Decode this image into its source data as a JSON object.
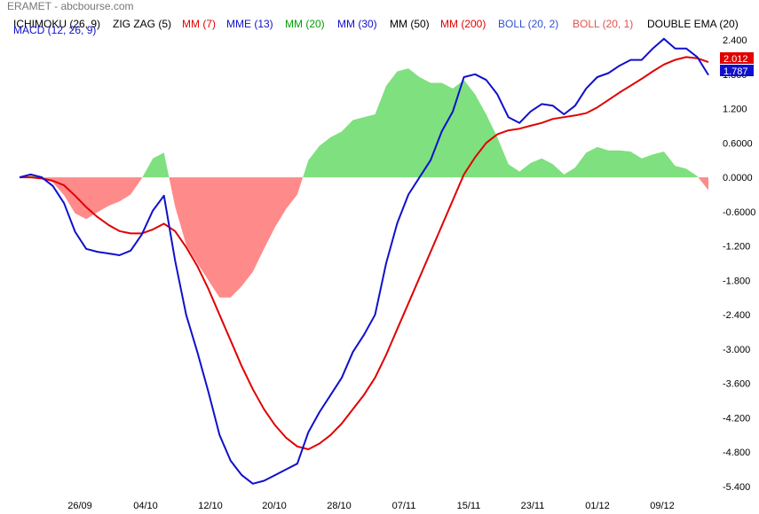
{
  "title": "ERAMET - abcbourse.com",
  "indicators": [
    {
      "label": "ICHIMOKU (26, 9)",
      "color": "#000000"
    },
    {
      "label": "ZIG ZAG (5)",
      "color": "#000000"
    },
    {
      "label": "MM (7)",
      "color": "#e00000"
    },
    {
      "label": "MME (13)",
      "color": "#1010cc"
    },
    {
      "label": "MM (20)",
      "color": "#00a000"
    },
    {
      "label": "MM (30)",
      "color": "#1010cc"
    },
    {
      "label": "MM (50)",
      "color": "#000000"
    },
    {
      "label": "MM (200)",
      "color": "#e00000"
    },
    {
      "label": "BOLL (20, 2)",
      "color": "#3050d0"
    },
    {
      "label": "BOLL (20, 1)",
      "color": "#e05050"
    },
    {
      "label": "DOUBLE EMA (20)",
      "color": "#000000"
    }
  ],
  "macd_label": "MACD (12, 26, 9)",
  "last_values": {
    "signal": "2.012",
    "macd": "1.787"
  },
  "colors": {
    "macd": "#1010cc",
    "signal": "#e00000",
    "hist_pos": "#7ee07e",
    "hist_neg": "#ff8a8a"
  },
  "chart_data": {
    "type": "line",
    "title": "MACD (12, 26, 9)",
    "x_ticks": [
      "26/09",
      "04/10",
      "12/10",
      "20/10",
      "28/10",
      "07/11",
      "15/11",
      "23/11",
      "01/12",
      "09/12"
    ],
    "y_ticks": [
      "2.400",
      "1.800",
      "1.200",
      "0.6000",
      "0.0000",
      "-0.6000",
      "-1.200",
      "-1.800",
      "-2.400",
      "-3.000",
      "-3.600",
      "-4.200",
      "-4.800",
      "-5.400"
    ],
    "ylim": [
      -5.4,
      2.4
    ],
    "grid": false,
    "series": [
      {
        "name": "MACD",
        "values": [
          0.0,
          0.05,
          0.0,
          -0.15,
          -0.45,
          -0.95,
          -1.25,
          -1.3,
          -1.33,
          -1.36,
          -1.28,
          -1.0,
          -0.58,
          -0.32,
          -1.45,
          -2.4,
          -3.05,
          -3.75,
          -4.5,
          -4.95,
          -5.2,
          -5.35,
          -5.3,
          -5.2,
          -5.1,
          -5.0,
          -4.45,
          -4.1,
          -3.8,
          -3.5,
          -3.05,
          -2.75,
          -2.4,
          -1.5,
          -0.8,
          -0.3,
          -0.0,
          0.3,
          0.8,
          1.15,
          1.75,
          1.8,
          1.7,
          1.45,
          1.05,
          0.95,
          1.15,
          1.28,
          1.25,
          1.1,
          1.25,
          1.55,
          1.75,
          1.82,
          1.95,
          2.05,
          2.05,
          2.25,
          2.42,
          2.25,
          2.25,
          2.1,
          1.787
        ]
      },
      {
        "name": "Signal",
        "values": [
          0.0,
          0.0,
          -0.02,
          -0.06,
          -0.14,
          -0.32,
          -0.52,
          -0.69,
          -0.83,
          -0.94,
          -0.98,
          -0.98,
          -0.91,
          -0.81,
          -0.94,
          -1.22,
          -1.55,
          -1.95,
          -2.4,
          -2.85,
          -3.3,
          -3.7,
          -4.05,
          -4.33,
          -4.55,
          -4.7,
          -4.75,
          -4.65,
          -4.5,
          -4.3,
          -4.05,
          -3.8,
          -3.5,
          -3.1,
          -2.65,
          -2.2,
          -1.75,
          -1.3,
          -0.85,
          -0.4,
          0.05,
          0.35,
          0.6,
          0.75,
          0.82,
          0.85,
          0.9,
          0.95,
          1.02,
          1.05,
          1.08,
          1.12,
          1.22,
          1.35,
          1.48,
          1.6,
          1.72,
          1.85,
          1.97,
          2.05,
          2.1,
          2.08,
          2.012
        ]
      },
      {
        "name": "Histogram",
        "values": [
          0.0,
          0.05,
          0.02,
          -0.09,
          -0.31,
          -0.63,
          -0.73,
          -0.61,
          -0.5,
          -0.42,
          -0.3,
          -0.02,
          0.33,
          0.43,
          -0.51,
          -1.18,
          -1.5,
          -1.8,
          -2.1,
          -2.1,
          -1.9,
          -1.65,
          -1.25,
          -0.87,
          -0.55,
          -0.3,
          0.3,
          0.55,
          0.7,
          0.8,
          1.0,
          1.05,
          1.1,
          1.6,
          1.85,
          1.9,
          1.75,
          1.65,
          1.65,
          1.55,
          1.7,
          1.45,
          1.1,
          0.7,
          0.23,
          0.1,
          0.25,
          0.33,
          0.23,
          0.05,
          0.17,
          0.43,
          0.53,
          0.47,
          0.47,
          0.45,
          0.33,
          0.4,
          0.45,
          0.2,
          0.15,
          0.02,
          -0.225
        ]
      }
    ]
  }
}
